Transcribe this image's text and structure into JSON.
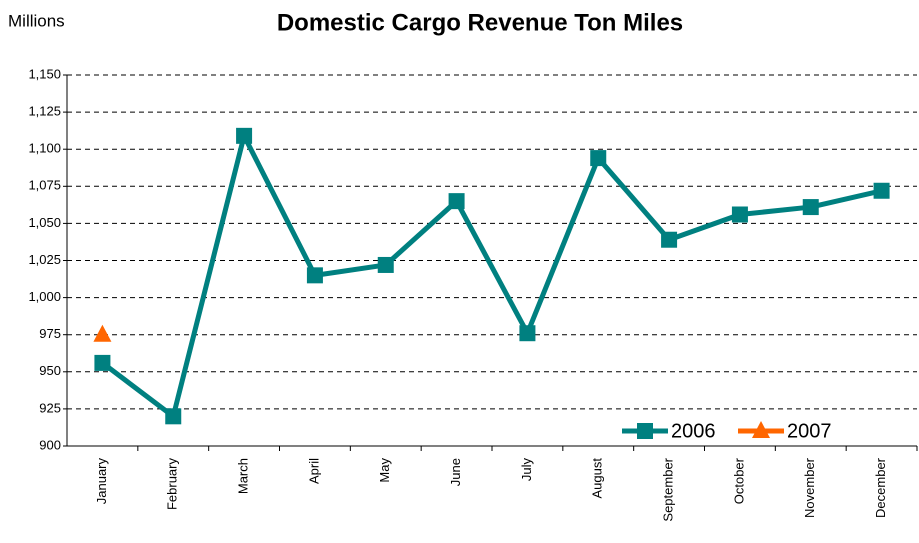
{
  "chart_data": {
    "type": "line",
    "title": "Domestic Cargo Revenue Ton Miles",
    "y_label": "Millions",
    "categories": [
      "January",
      "February",
      "March",
      "April",
      "May",
      "June",
      "July",
      "August",
      "September",
      "October",
      "November",
      "December"
    ],
    "series": [
      {
        "name": "2006",
        "color": "#008080",
        "marker": "square",
        "values": [
          956,
          920,
          1109,
          1015,
          1022,
          1065,
          976,
          1094,
          1039,
          1056,
          1061,
          1072
        ]
      },
      {
        "name": "2007",
        "color": "#ff6600",
        "marker": "triangle",
        "values": [
          975,
          null,
          null,
          null,
          null,
          null,
          null,
          null,
          null,
          null,
          null,
          null
        ]
      }
    ],
    "ylim": [
      900,
      1150
    ],
    "yticks": [
      900,
      925,
      950,
      975,
      {
        "value": 1000,
        "label": "1,000"
      },
      {
        "value": 1025,
        "label": "1,025"
      },
      {
        "value": 1050,
        "label": "1,050"
      },
      {
        "value": 1075,
        "label": "1,075"
      },
      {
        "value": 1100,
        "label": "1,100"
      },
      {
        "value": 1125,
        "label": "1,125"
      },
      {
        "value": 1150,
        "label": "1,150"
      }
    ],
    "grid": true,
    "legend": "lower right"
  }
}
